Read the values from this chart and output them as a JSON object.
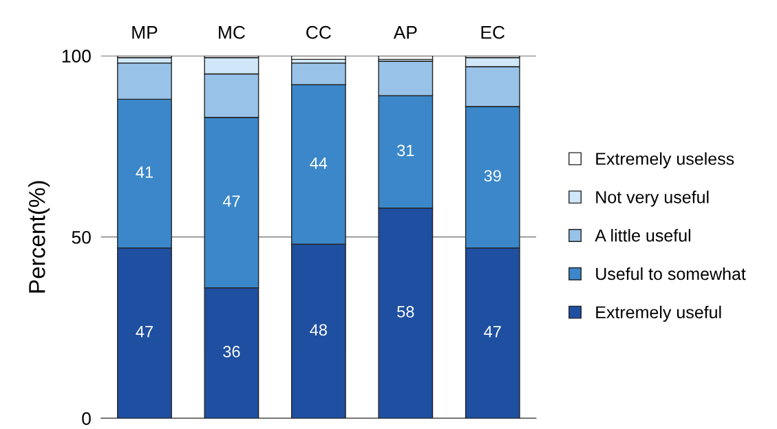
{
  "chart_data": {
    "type": "bar",
    "stacked": true,
    "ylabel": "Percent(%)",
    "categories": [
      "MP",
      "MC",
      "CC",
      "AP",
      "EC"
    ],
    "series": [
      {
        "name": "Extremely useful",
        "color": "#1f4fa0",
        "values": [
          47,
          36,
          48,
          58,
          47
        ],
        "value_labels": [
          "47",
          "36",
          "48",
          "58",
          "47"
        ]
      },
      {
        "name": "Useful to somewhat",
        "color": "#3b87c9",
        "values": [
          41,
          47,
          44,
          31,
          39
        ],
        "value_labels": [
          "41",
          "47",
          "44",
          "31",
          "39"
        ]
      },
      {
        "name": "A little useful",
        "color": "#98c2e8",
        "values": [
          10,
          12,
          6,
          9.5,
          11
        ]
      },
      {
        "name": "Not very useful",
        "color": "#cfe7f8",
        "values": [
          1.5,
          4.5,
          1,
          0.5,
          2.5
        ]
      },
      {
        "name": "Extremely useless",
        "color": "#ffffff",
        "values": [
          0.5,
          0.5,
          1,
          1,
          0.5
        ]
      }
    ],
    "ylim": [
      0,
      100
    ],
    "yticks": [
      0,
      50,
      100
    ],
    "grid": "y",
    "legend": "right"
  }
}
